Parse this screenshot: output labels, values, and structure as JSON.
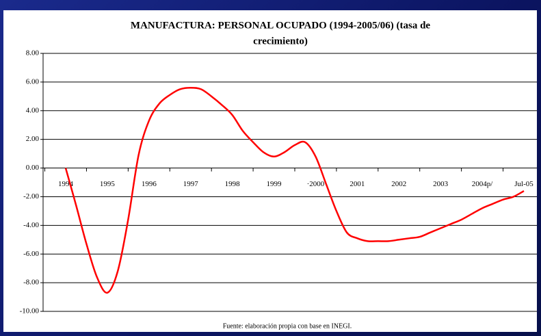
{
  "chart_data": {
    "type": "line",
    "title": "MANUFACTURA: PERSONAL OCUPADO (1994-2005/06) (tasa de crecimiento)",
    "source": "Fuente: elaboración propia con base en INEGI.",
    "categories": [
      "1994",
      null,
      null,
      null,
      "1995",
      null,
      null,
      null,
      "1996",
      null,
      null,
      null,
      "1997",
      null,
      null,
      null,
      "1998",
      null,
      null,
      null,
      "1999",
      null,
      null,
      null,
      "·2000",
      null,
      null,
      null,
      "2001",
      null,
      null,
      null,
      "2002",
      null,
      null,
      null,
      "2003",
      null,
      null,
      null,
      "2004p/",
      null,
      null,
      null,
      "Jul-05"
    ],
    "series": [
      {
        "color": "#ff0000",
        "values": [
          0,
          -2.6,
          -5.3,
          -7.6,
          -8.7,
          -7.2,
          -3.6,
          0.9,
          3.3,
          4.5,
          5.1,
          5.5,
          5.6,
          5.5,
          5.0,
          4.4,
          3.7,
          2.6,
          1.8,
          1.1,
          0.8,
          1.1,
          1.6,
          1.8,
          0.8,
          -1.1,
          -3.0,
          -4.5,
          -4.9,
          -5.1,
          -5.1,
          -5.1,
          -5.0,
          -4.9,
          -4.8,
          -4.5,
          -4.2,
          -3.9,
          -3.6,
          -3.2,
          -2.8,
          -2.5,
          -2.2,
          -2.0,
          -1.6
        ]
      }
    ],
    "ylim": [
      -10,
      8
    ],
    "yticks": [
      {
        "value": -10,
        "label": "-10.00"
      },
      {
        "value": -8,
        "label": "-8.00"
      },
      {
        "value": -6,
        "label": "-6.00"
      },
      {
        "value": -4,
        "label": "-4.00"
      },
      {
        "value": -2,
        "label": "-2.00"
      },
      {
        "value": 0,
        "label": "0.00"
      },
      {
        "value": 2,
        "label": "2.00"
      },
      {
        "value": 4,
        "label": "4.00"
      },
      {
        "value": 6,
        "label": "6.00"
      },
      {
        "value": 8,
        "label": "8.00"
      }
    ],
    "grid": true
  }
}
